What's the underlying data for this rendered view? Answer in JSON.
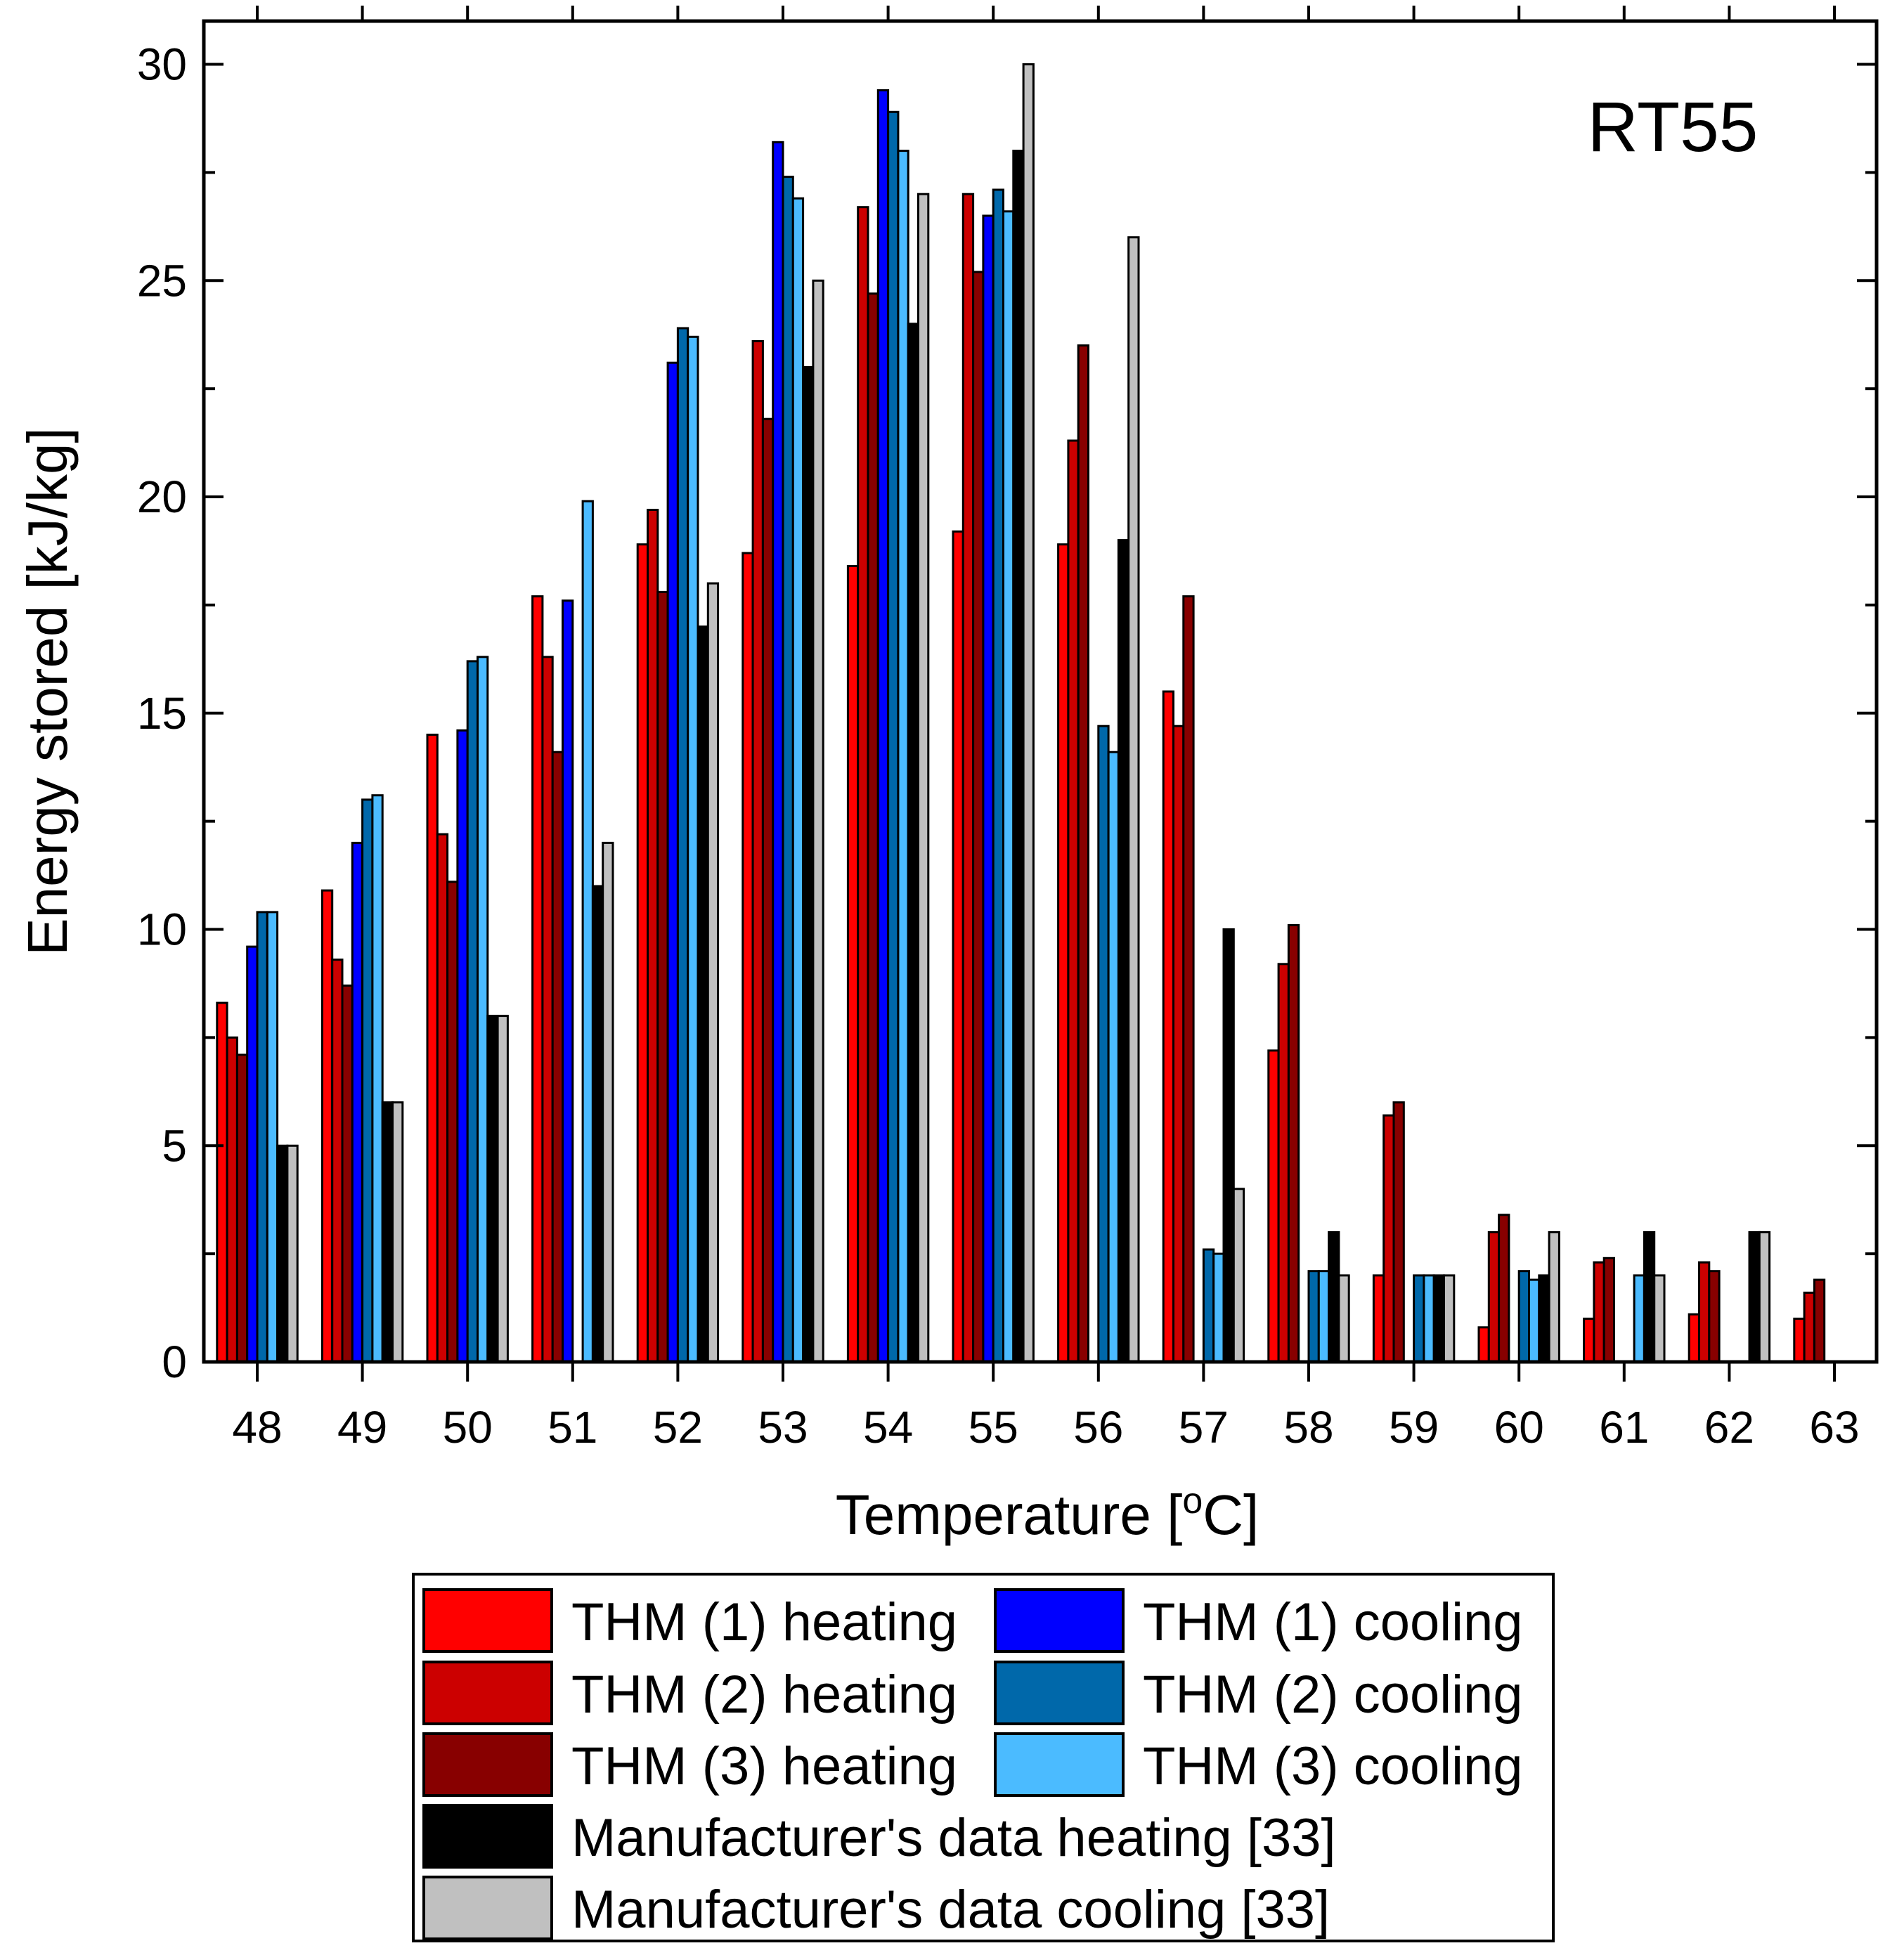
{
  "chart_data": {
    "type": "bar",
    "title": "",
    "annotation": "RT55",
    "xlabel": "Temperature [",
    "xlabel_sup": "o",
    "xlabel_end": "C]",
    "ylabel": "Energy stored [kJ/kg]",
    "ylim": [
      0,
      31
    ],
    "yticks": [
      0,
      5,
      10,
      15,
      20,
      25,
      30
    ],
    "categories": [
      "48",
      "49",
      "50",
      "51",
      "52",
      "53",
      "54",
      "55",
      "56",
      "57",
      "58",
      "59",
      "60",
      "61",
      "62",
      "63"
    ],
    "series": [
      {
        "name": "THM (1) heating",
        "color": "#ff0000",
        "values": [
          8.3,
          10.9,
          14.5,
          17.7,
          18.9,
          18.7,
          18.4,
          19.2,
          18.9,
          15.5,
          7.2,
          2.0,
          0.8,
          1.0,
          1.1,
          1.0
        ]
      },
      {
        "name": "THM (2) heating",
        "color": "#cc0000",
        "values": [
          7.5,
          9.3,
          12.2,
          16.3,
          19.7,
          23.6,
          26.7,
          27.0,
          21.3,
          14.7,
          9.2,
          5.7,
          3.0,
          2.3,
          2.3,
          1.6
        ]
      },
      {
        "name": "THM (3) heating",
        "color": "#880000",
        "values": [
          7.1,
          8.7,
          11.1,
          14.1,
          17.8,
          21.8,
          24.7,
          25.2,
          23.5,
          17.7,
          10.1,
          6.0,
          3.4,
          2.4,
          2.1,
          1.9
        ]
      },
      {
        "name": "THM (1) cooling",
        "color": "#0000ff",
        "values": [
          9.6,
          12.0,
          14.6,
          17.6,
          23.1,
          28.2,
          29.4,
          26.5,
          null,
          null,
          null,
          null,
          null,
          null,
          null,
          null
        ]
      },
      {
        "name": "THM (2) cooling",
        "color": "#0068aa",
        "values": [
          10.4,
          13.0,
          16.2,
          null,
          23.9,
          27.4,
          28.9,
          27.1,
          14.7,
          2.6,
          2.1,
          2.0,
          2.1,
          null,
          null,
          null
        ]
      },
      {
        "name": "THM (3) cooling",
        "color": "#4bbbff",
        "values": [
          10.4,
          13.1,
          16.3,
          19.9,
          23.7,
          26.9,
          28.0,
          26.6,
          14.1,
          2.5,
          2.1,
          2.0,
          1.9,
          2.0,
          null,
          null
        ]
      },
      {
        "name": "Manufacturer's data heating [33]",
        "color": "#000000",
        "values": [
          5.0,
          6.0,
          8.0,
          11.0,
          17.0,
          23.0,
          24.0,
          28.0,
          19.0,
          10.0,
          3.0,
          2.0,
          2.0,
          3.0,
          3.0,
          null
        ]
      },
      {
        "name": "Manufacturer's data cooling [33]",
        "color": "#c0c0c0",
        "values": [
          5.0,
          6.0,
          8.0,
          12.0,
          18.0,
          25.0,
          27.0,
          30.0,
          26.0,
          4.0,
          2.0,
          2.0,
          3.0,
          2.0,
          3.0,
          null
        ]
      }
    ],
    "legend_position": "below-plot"
  }
}
